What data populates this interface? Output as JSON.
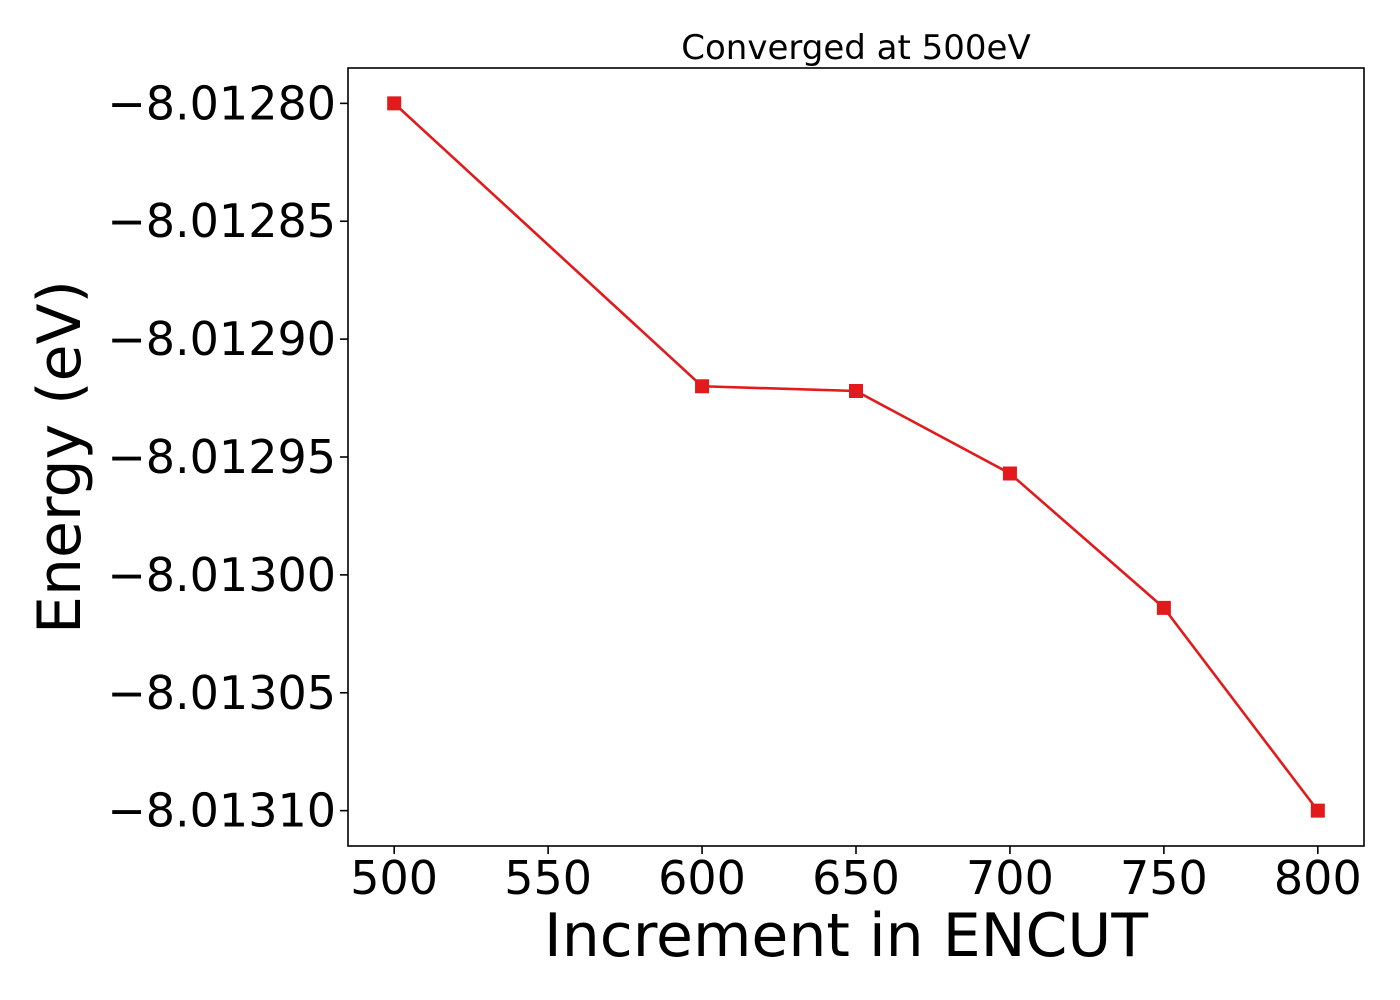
{
  "chart_data": {
    "type": "line",
    "title": "Converged at 500eV",
    "xlabel": "Increment in ENCUT",
    "ylabel": "Energy (eV)",
    "xlim": [
      485,
      815
    ],
    "ylim": [
      -8.013115,
      -8.012785
    ],
    "x_ticks": [
      500,
      550,
      600,
      650,
      700,
      750,
      800
    ],
    "x_tick_labels": [
      "500",
      "550",
      "600",
      "650",
      "700",
      "750",
      "800"
    ],
    "y_ticks": [
      -8.0128,
      -8.01285,
      -8.0129,
      -8.01295,
      -8.013,
      -8.01305,
      -8.0131
    ],
    "y_tick_labels": [
      "−8.01280",
      "−8.01285",
      "−8.01290",
      "−8.01295",
      "−8.01300",
      "−8.01305",
      "−8.01310"
    ],
    "grid": false,
    "series": [
      {
        "marker": "square",
        "color": "#e31a1c",
        "x": [
          500,
          600,
          650,
          700,
          750,
          800
        ],
        "y": [
          -8.0128,
          -8.01292,
          -8.012922,
          -8.012957,
          -8.013014,
          -8.0131
        ]
      }
    ]
  }
}
